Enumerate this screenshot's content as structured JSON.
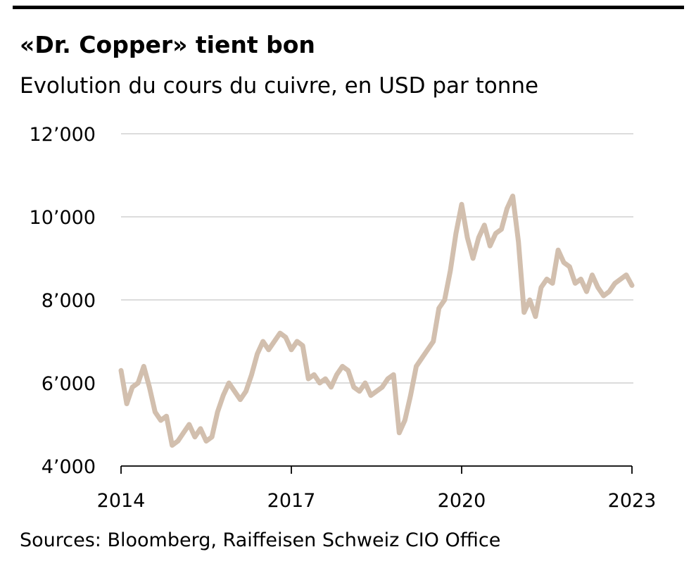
{
  "title": "«Dr. Copper» tient bon",
  "subtitle": "Evolution du cours du cuivre, en USD par tonne",
  "source": "Sources: Bloomberg, Raiffeisen Schweiz CIO Office",
  "chart_data": {
    "type": "line",
    "title": "«Dr. Copper» tient bon",
    "subtitle": "Evolution du cours du cuivre, en USD par tonne",
    "xlabel": "",
    "ylabel": "",
    "xlim": [
      2014,
      2023
    ],
    "ylim": [
      4000,
      12000
    ],
    "x_ticks": [
      "2014",
      "2017",
      "2020",
      "2023"
    ],
    "x_tick_values": [
      2014,
      2017,
      2020,
      2023
    ],
    "y_ticks": [
      "4’000",
      "6’000",
      "8’000",
      "10’000",
      "12’000"
    ],
    "y_tick_values": [
      4000,
      6000,
      8000,
      10000,
      12000
    ],
    "grid": true,
    "line_color": "#d2bfae",
    "series": [
      {
        "x": [
          2014.0,
          2014.1,
          2014.2,
          2014.3,
          2014.4,
          2014.5,
          2014.6,
          2014.7,
          2014.8,
          2014.9,
          2015.0,
          2015.1,
          2015.2,
          2015.3,
          2015.4,
          2015.5,
          2015.6,
          2015.7,
          2015.8,
          2015.9,
          2016.0,
          2016.1,
          2016.2,
          2016.3,
          2016.4,
          2016.5,
          2016.6,
          2016.7,
          2016.8,
          2016.9,
          2017.0,
          2017.1,
          2017.2,
          2017.3,
          2017.4,
          2017.5,
          2017.6,
          2017.7,
          2017.8,
          2017.9,
          2018.0,
          2018.1,
          2018.2,
          2018.3,
          2018.4,
          2018.5,
          2018.6,
          2018.7,
          2018.8,
          2018.9,
          2019.0,
          2019.1,
          2019.2,
          2019.3,
          2019.4,
          2019.5,
          2019.6,
          2019.7,
          2019.8,
          2019.9,
          2020.0,
          2020.1,
          2020.2,
          2020.3,
          2020.4,
          2020.5,
          2020.6,
          2020.7,
          2020.8,
          2020.9,
          2021.0,
          2021.1,
          2021.2,
          2021.3,
          2021.4,
          2021.5,
          2021.6,
          2021.7,
          2021.8,
          2021.9,
          2022.0,
          2022.1,
          2022.2,
          2022.3,
          2022.4,
          2022.5,
          2022.6,
          2022.7,
          2022.8,
          2022.9,
          2023.0
        ],
        "values": [
          6300,
          5500,
          5900,
          6000,
          6400,
          5900,
          5300,
          5100,
          5200,
          4500,
          4600,
          4800,
          5000,
          4700,
          4900,
          4600,
          4700,
          5300,
          5700,
          6000,
          5800,
          5600,
          5800,
          6200,
          6700,
          7000,
          6800,
          7000,
          7200,
          7100,
          6800,
          7000,
          6900,
          6100,
          6200,
          6000,
          6100,
          5900,
          6200,
          6400,
          6300,
          5900,
          5800,
          6000,
          5700,
          5800,
          5900,
          6100,
          6200,
          4800,
          5100,
          5700,
          6400,
          6600,
          6800,
          7000,
          7800,
          8000,
          8700,
          9600,
          10300,
          9500,
          9000,
          9500,
          9800,
          9300,
          9600,
          9700,
          10200,
          10500,
          9400,
          7700,
          8000,
          7600,
          8300,
          8500,
          8400,
          9200,
          8900,
          8800,
          8400,
          8500,
          8200,
          8600,
          8300,
          8100,
          8200,
          8400,
          8500,
          8600,
          8350
        ],
        "name": ""
      }
    ]
  }
}
